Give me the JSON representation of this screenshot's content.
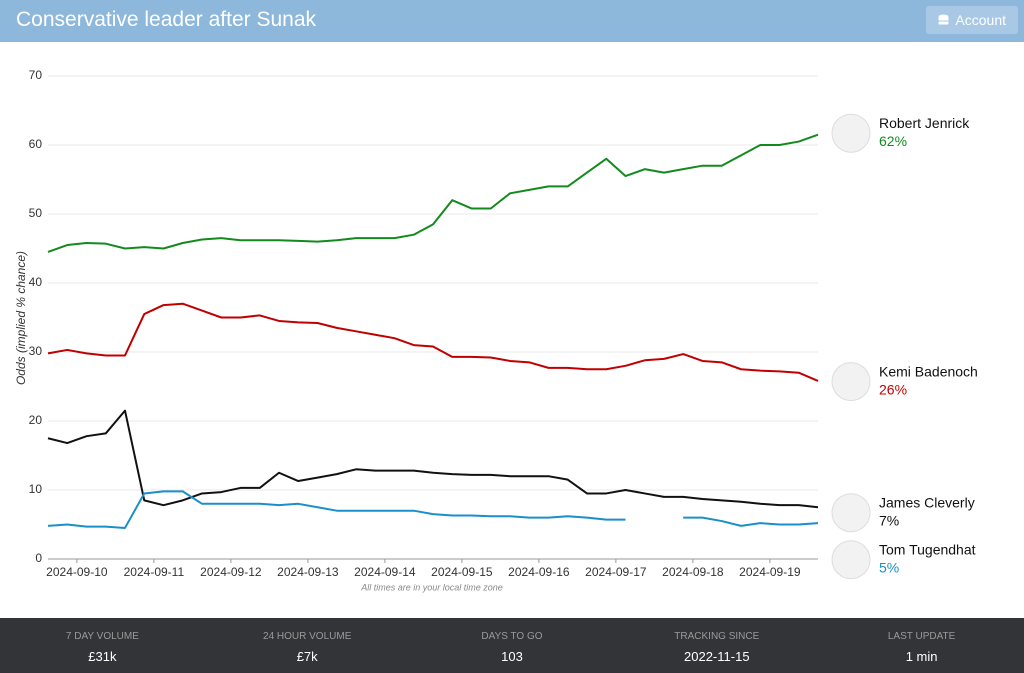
{
  "header": {
    "title": "Conservative leader after Sunak",
    "account": "Account"
  },
  "chart_data": {
    "type": "line",
    "y_label": "Odds (implied % chance)",
    "note": "All times are in your local time zone",
    "xlim": [
      0,
      40
    ],
    "xticks": [
      {
        "value": 1.5,
        "label": "2024-09-10"
      },
      {
        "value": 5.5,
        "label": "2024-09-11"
      },
      {
        "value": 9.5,
        "label": "2024-09-12"
      },
      {
        "value": 13.5,
        "label": "2024-09-13"
      },
      {
        "value": 17.5,
        "label": "2024-09-14"
      },
      {
        "value": 21.5,
        "label": "2024-09-15"
      },
      {
        "value": 25.5,
        "label": "2024-09-16"
      },
      {
        "value": 29.5,
        "label": "2024-09-17"
      },
      {
        "value": 33.5,
        "label": "2024-09-18"
      },
      {
        "value": 37.5,
        "label": "2024-09-19"
      }
    ],
    "ylim": [
      0,
      70
    ],
    "yticks": [
      0,
      10,
      20,
      30,
      40,
      50,
      60,
      70
    ],
    "grid": true,
    "series": [
      {
        "name": "Robert Jenrick",
        "color": "#138a1e",
        "current": 62,
        "current_label": "62%",
        "values": [
          44.5,
          45.5,
          45.8,
          45.7,
          45,
          45.2,
          45,
          45.8,
          46.3,
          46.5,
          46.2,
          46.2,
          46.2,
          46.1,
          46,
          46.2,
          46.5,
          46.5,
          46.5,
          47,
          48.5,
          52,
          50.8,
          50.8,
          53,
          53.5,
          54,
          54,
          56,
          58,
          55.5,
          56.5,
          56,
          56.5,
          57,
          57,
          58.5,
          60,
          60,
          60.5,
          61.5
        ]
      },
      {
        "name": "Kemi Badenoch",
        "color": "#c00000",
        "current": 26,
        "current_label": "26%",
        "values": [
          29.8,
          30.3,
          29.8,
          29.5,
          29.5,
          35.5,
          36.8,
          37,
          36,
          35,
          35,
          35.3,
          34.5,
          34.3,
          34.2,
          33.5,
          33,
          32.5,
          32,
          31,
          30.8,
          29.3,
          29.3,
          29.2,
          28.7,
          28.5,
          27.7,
          27.7,
          27.5,
          27.5,
          28,
          28.8,
          29,
          29.7,
          28.7,
          28.5,
          27.5,
          27.3,
          27.2,
          27,
          25.8
        ]
      },
      {
        "name": "James Cleverly",
        "color": "#111111",
        "current": 7,
        "current_label": "7%",
        "values": [
          17.5,
          16.8,
          17.8,
          18.2,
          21.5,
          8.5,
          7.8,
          8.5,
          9.5,
          9.7,
          10.3,
          10.3,
          12.5,
          11.3,
          11.8,
          12.3,
          13,
          12.8,
          12.8,
          12.8,
          12.5,
          12.3,
          12.2,
          12.2,
          12,
          12,
          12,
          11.5,
          9.5,
          9.5,
          10,
          9.5,
          9,
          9,
          8.7,
          8.5,
          8.3,
          8,
          7.8,
          7.8,
          7.5
        ]
      },
      {
        "name": "Tom Tugendhat",
        "color": "#1a8fc8",
        "current": 5,
        "current_label": "5%",
        "values": [
          4.8,
          5,
          4.7,
          4.7,
          4.5,
          9.5,
          9.8,
          9.8,
          8,
          8,
          8,
          8,
          7.8,
          8,
          7.5,
          7,
          7,
          7,
          7,
          7,
          6.5,
          6.3,
          6.3,
          6.2,
          6.2,
          6,
          6,
          6.2,
          6,
          5.7,
          5.7,
          null,
          null,
          6,
          6,
          5.5,
          4.8,
          5.2,
          5,
          5,
          5.2
        ]
      }
    ]
  },
  "stats": [
    {
      "label": "7 DAY VOLUME",
      "value": "£31k"
    },
    {
      "label": "24 HOUR VOLUME",
      "value": "£7k"
    },
    {
      "label": "DAYS TO GO",
      "value": 103
    },
    {
      "label": "TRACKING SINCE",
      "value": "2022-11-15"
    },
    {
      "label": "LAST UPDATE",
      "value": "1 min"
    }
  ]
}
